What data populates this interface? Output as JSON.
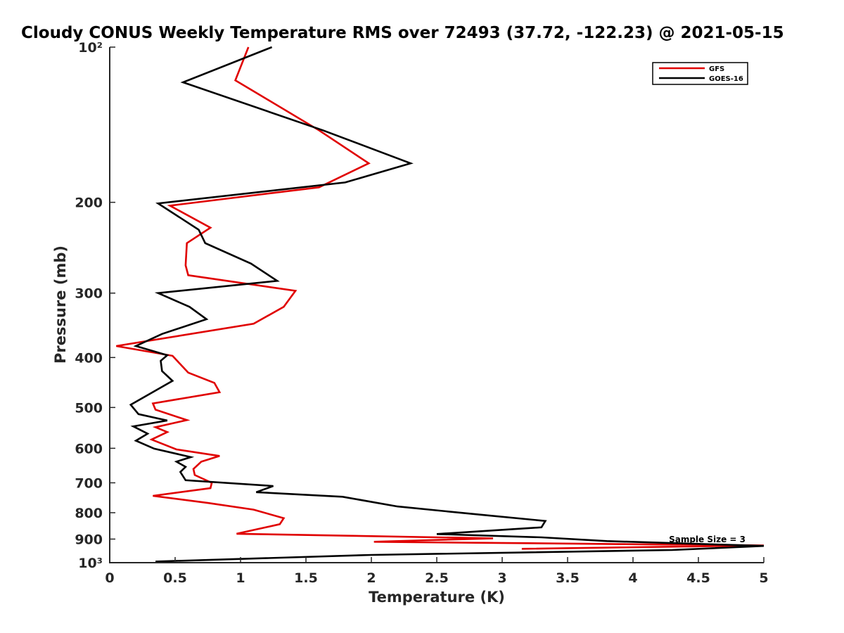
{
  "chart_data": {
    "type": "line",
    "title": "Cloudy CONUS Weekly Temperature RMS over 72493 (37.72, -122.23) @ 2021-05-15",
    "xlabel": "Temperature (K)",
    "ylabel": "Pressure (mb)",
    "xlim": [
      0,
      5
    ],
    "ylim": [
      100,
      1000
    ],
    "y_scale": "log",
    "y_reversed": true,
    "x_ticks": [
      0,
      0.5,
      1,
      1.5,
      2,
      2.5,
      3,
      3.5,
      4,
      4.5,
      5
    ],
    "x_tick_labels": [
      "0",
      "0.5",
      "1",
      "1.5",
      "2",
      "2.5",
      "3",
      "3.5",
      "4",
      "4.5",
      "5"
    ],
    "y_ticks": [
      100,
      200,
      300,
      400,
      500,
      600,
      700,
      800,
      900,
      1000
    ],
    "y_tick_labels": [
      "10²",
      "200",
      "300",
      "400",
      "500",
      "600",
      "700",
      "800",
      "900",
      "10³"
    ],
    "grid": false,
    "legend_position": "top-right",
    "annotation": "Sample Size = 3",
    "series": [
      {
        "name": "GFS",
        "color": "#e00000",
        "x": [
          1.06,
          0.96,
          1.6,
          1.98,
          1.6,
          0.46,
          0.77,
          0.59,
          0.58,
          0.6,
          1.42,
          1.33,
          1.1,
          0.05,
          0.48,
          0.6,
          0.8,
          0.84,
          0.33,
          0.35,
          0.59,
          0.35,
          0.44,
          0.32,
          0.51,
          0.84,
          0.7,
          0.64,
          0.65,
          0.78,
          0.77,
          0.33,
          0.75,
          1.1,
          1.33,
          1.3,
          0.97,
          2.93,
          2.02,
          5.0,
          3.15
        ],
        "y": [
          100,
          116,
          145,
          168,
          187,
          203,
          224,
          240,
          265,
          277,
          297,
          319,
          344,
          380,
          397,
          428,
          448,
          467,
          491,
          505,
          529,
          546,
          558,
          577,
          603,
          621,
          637,
          658,
          676,
          700,
          717,
          742,
          766,
          789,
          820,
          842,
          879,
          897,
          911,
          926,
          940
        ]
      },
      {
        "name": "GOES-16",
        "color": "#000000",
        "x": [
          1.24,
          0.56,
          1.63,
          2.3,
          1.8,
          0.37,
          0.68,
          0.73,
          1.08,
          1.28,
          0.37,
          0.61,
          0.74,
          0.4,
          0.2,
          0.44,
          0.39,
          0.4,
          0.48,
          0.16,
          0.22,
          0.44,
          0.18,
          0.29,
          0.2,
          0.34,
          0.62,
          0.51,
          0.58,
          0.54,
          0.58,
          1.25,
          1.12,
          1.78,
          2.2,
          2.85,
          3.33,
          3.3,
          2.5,
          3.3,
          3.8,
          5.0,
          4.3,
          2.0,
          0.35
        ],
        "y": [
          100,
          117,
          145,
          168,
          183,
          201,
          226,
          240,
          263,
          284,
          300,
          319,
          337,
          360,
          380,
          396,
          406,
          425,
          444,
          494,
          515,
          530,
          544,
          562,
          580,
          601,
          624,
          637,
          652,
          667,
          692,
          710,
          730,
          745,
          778,
          808,
          830,
          854,
          880,
          893,
          908,
          928,
          945,
          966,
          995
        ]
      }
    ]
  }
}
